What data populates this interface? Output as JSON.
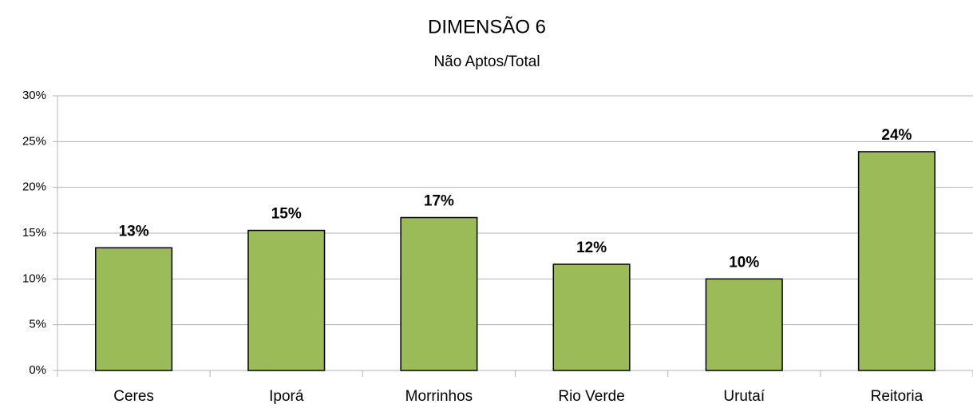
{
  "chart_data": {
    "type": "bar",
    "title": "DIMENSÃO 6",
    "subtitle": "Não Aptos/Total",
    "categories": [
      "Ceres",
      "Iporá",
      "Morrinhos",
      "Rio Verde",
      "Urutaí",
      "Reitoria"
    ],
    "values": [
      13.4,
      15.3,
      16.7,
      11.6,
      10.0,
      23.9
    ],
    "value_labels": [
      "13%",
      "15%",
      "17%",
      "12%",
      "10%",
      "24%"
    ],
    "color": "#9bbb59",
    "ylim": [
      0,
      30
    ],
    "yticks": [
      {
        "value": 0,
        "label": "0%"
      },
      {
        "value": 5,
        "label": "5%"
      },
      {
        "value": 10,
        "label": "10%"
      },
      {
        "value": 15,
        "label": "15%"
      },
      {
        "value": 20,
        "label": "20%"
      },
      {
        "value": 25,
        "label": "25%"
      },
      {
        "value": 30,
        "label": "30%"
      }
    ],
    "grid": true
  }
}
